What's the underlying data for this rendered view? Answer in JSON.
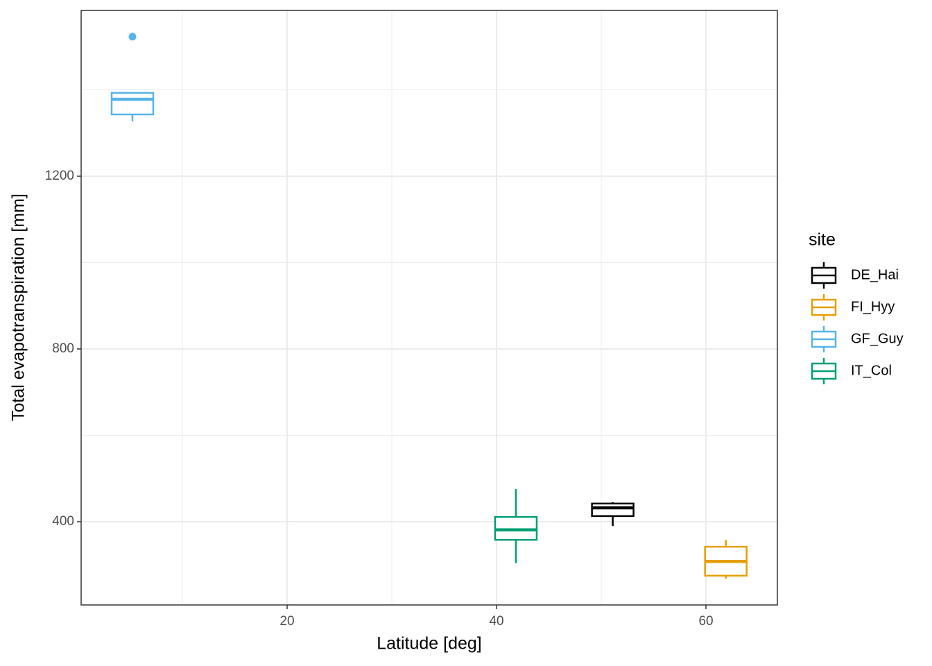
{
  "chart_data": {
    "type": "boxplot",
    "x_label": "Latitude [deg]",
    "y_label": "Total evapotranspiration [mm]",
    "legend_title": "site",
    "legend_position": "right",
    "grid": true,
    "xlim": [
      0.33,
      66.82
    ],
    "ylim": [
      207.2,
      1583.9
    ],
    "xticks": [
      20,
      40,
      60
    ],
    "yticks": [
      400,
      800,
      1200
    ],
    "xminor": [
      10,
      30,
      50
    ],
    "yminor": [
      600,
      1000,
      1400
    ],
    "series": [
      {
        "name": "DE_Hai",
        "color": "#000000",
        "x": 51.1,
        "whisker_low": 390,
        "q1": 413,
        "median": 432,
        "q3": 442,
        "whisker_high": 445,
        "outliers": []
      },
      {
        "name": "FI_Hyy",
        "color": "#E69F00",
        "x": 61.9,
        "whisker_low": 268,
        "q1": 275,
        "median": 308,
        "q3": 342,
        "whisker_high": 358,
        "outliers": []
      },
      {
        "name": "GF_Guy",
        "color": "#56B4E9",
        "x": 5.23,
        "whisker_low": 1327,
        "q1": 1343,
        "median": 1378,
        "q3": 1393,
        "whisker_high": 1393,
        "outliers": [
          1523
        ]
      },
      {
        "name": "IT_Col",
        "color": "#009E73",
        "x": 41.85,
        "whisker_low": 304,
        "q1": 358,
        "median": 381,
        "q3": 411,
        "whisker_high": 475.5,
        "outliers": []
      }
    ]
  }
}
